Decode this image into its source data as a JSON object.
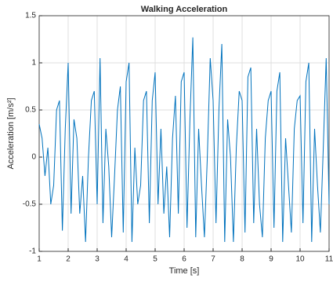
{
  "chart_data": {
    "type": "line",
    "title": "Walking Acceleration",
    "x_label": "Time [s]",
    "y_label": "Acceleration [m/s²]",
    "x": [
      1.0,
      1.1,
      1.2,
      1.3,
      1.4,
      1.5,
      1.6,
      1.7,
      1.8,
      1.9,
      2.0,
      2.1,
      2.2,
      2.3,
      2.4,
      2.5,
      2.6,
      2.7,
      2.8,
      2.9,
      3.0,
      3.1,
      3.2,
      3.3,
      3.4,
      3.5,
      3.6,
      3.7,
      3.8,
      3.9,
      4.0,
      4.1,
      4.2,
      4.3,
      4.4,
      4.5,
      4.6,
      4.7,
      4.8,
      4.9,
      5.0,
      5.1,
      5.2,
      5.3,
      5.4,
      5.5,
      5.6,
      5.7,
      5.8,
      5.9,
      6.0,
      6.1,
      6.2,
      6.3,
      6.4,
      6.5,
      6.6,
      6.7,
      6.8,
      6.9,
      7.0,
      7.1,
      7.2,
      7.3,
      7.4,
      7.5,
      7.6,
      7.7,
      7.8,
      7.9,
      8.0,
      8.1,
      8.2,
      8.3,
      8.4,
      8.5,
      8.6,
      8.7,
      8.8,
      8.9,
      9.0,
      9.1,
      9.2,
      9.3,
      9.4,
      9.5,
      9.6,
      9.7,
      9.8,
      9.9,
      10.0,
      10.1,
      10.2,
      10.3,
      10.4,
      10.5,
      10.6,
      10.7,
      10.8,
      10.9,
      11.0
    ],
    "series": [
      {
        "name": "Acceleration",
        "color": "#0072bd",
        "values": [
          0.35,
          0.2,
          -0.2,
          0.1,
          -0.5,
          -0.3,
          0.5,
          0.6,
          -0.78,
          0.3,
          1.0,
          -0.6,
          0.4,
          0.2,
          -0.6,
          -0.2,
          -0.9,
          0.0,
          0.6,
          0.7,
          -0.5,
          1.05,
          -0.7,
          0.3,
          -0.1,
          -0.85,
          -0.2,
          0.5,
          0.75,
          -0.8,
          0.8,
          1.0,
          -0.9,
          0.1,
          -0.5,
          -0.3,
          0.6,
          0.7,
          -0.7,
          0.6,
          0.9,
          -0.5,
          0.3,
          -0.6,
          -0.1,
          -0.85,
          0.2,
          0.65,
          -0.6,
          0.8,
          0.9,
          -0.75,
          0.4,
          1.27,
          -0.85,
          0.3,
          -0.3,
          -0.85,
          0.0,
          1.05,
          0.6,
          -0.7,
          0.5,
          1.2,
          -0.9,
          0.4,
          0.0,
          -0.9,
          0.1,
          0.7,
          0.6,
          -0.8,
          0.85,
          0.95,
          -0.7,
          0.3,
          -0.5,
          -0.85,
          0.2,
          0.6,
          0.7,
          -0.75,
          0.7,
          0.9,
          -0.9,
          0.2,
          -0.3,
          -0.8,
          0.3,
          0.6,
          0.65,
          -0.7,
          0.8,
          1.0,
          -0.9,
          0.3,
          -0.3,
          -0.8,
          0.1,
          1.05,
          -0.5
        ]
      }
    ],
    "xlim": [
      1,
      11
    ],
    "xticks": [
      1,
      2,
      3,
      4,
      5,
      6,
      7,
      8,
      9,
      10,
      11
    ],
    "ylim": [
      -1,
      1.5
    ],
    "yticks": [
      -1,
      -0.5,
      0,
      0.5,
      1,
      1.5
    ],
    "grid": true
  }
}
